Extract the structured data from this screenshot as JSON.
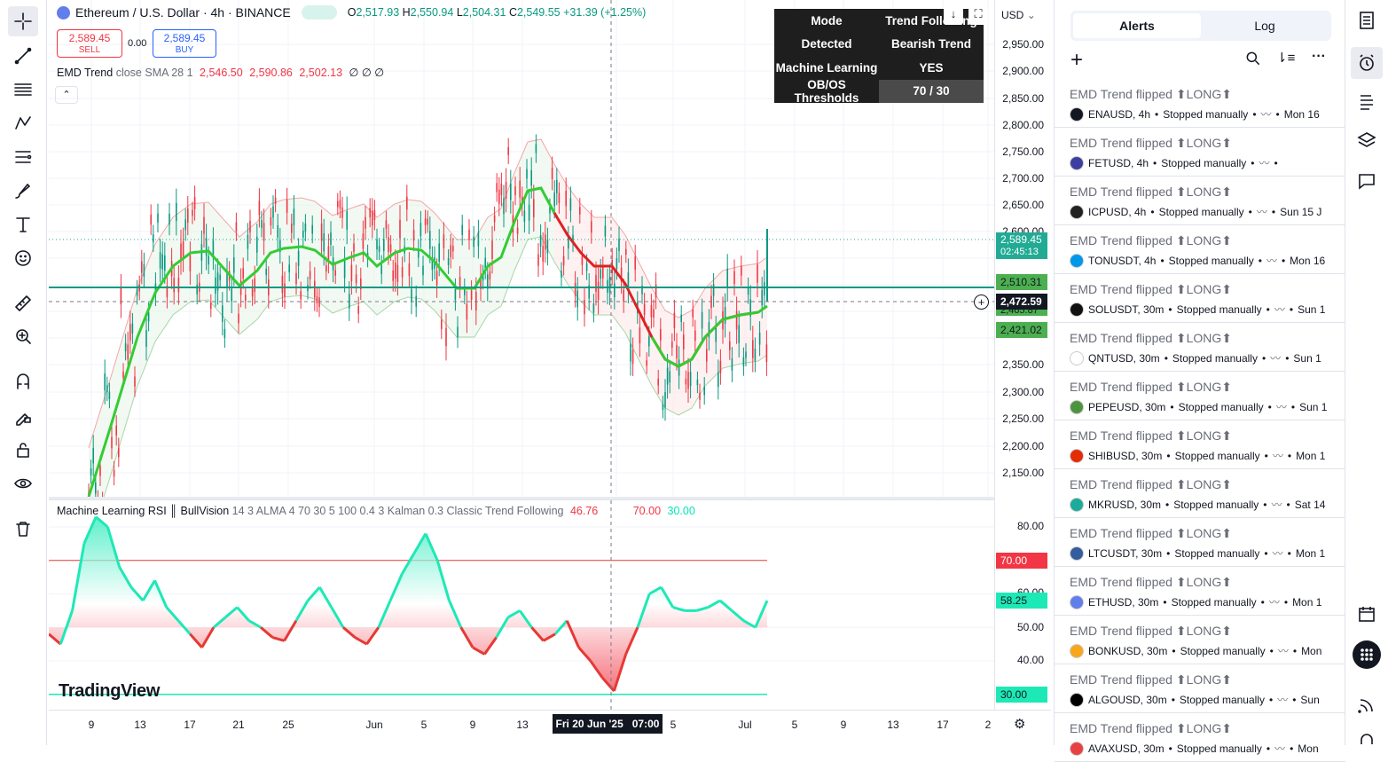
{
  "header": {
    "symbol": "Ethereum / U.S. Dollar · 4h · BINANCE",
    "o": "2,517.93",
    "h": "2,550.94",
    "l": "2,504.31",
    "c": "2,549.55",
    "change": "+31.39 (+1.25%)",
    "sell_price": "2,589.45",
    "sell_label": "SELL",
    "spread": "0.00",
    "buy_price": "2,589.45",
    "buy_label": "BUY"
  },
  "indicator": {
    "name": "EMD Trend",
    "params": "close SMA 28 1",
    "v1": "2,546.50",
    "v2": "2,590.86",
    "v3": "2,502.13",
    "tail": "∅ ∅ ∅"
  },
  "rsi_indicator": {
    "name": "Machine Learning RSI ║ BullVision",
    "params": "14 3 ALMA 4 70 30 5 100 0.4 3 Kalman 0.3 Classic Trend Following",
    "value": "46.76",
    "ob": "70.00",
    "os": "30.00"
  },
  "table": {
    "rows": [
      {
        "k": "Mode",
        "v": "Trend Following"
      },
      {
        "k": "Detected",
        "v": "Bearish Trend"
      },
      {
        "k": "Machine Learning",
        "v": "YES"
      },
      {
        "k": "OB/OS Thresholds",
        "v": "70 / 30"
      }
    ]
  },
  "price_scale": {
    "currency": "USD",
    "ticks": [
      "2,950.00",
      "2,900.00",
      "2,850.00",
      "2,800.00",
      "2,750.00",
      "2,700.00",
      "2,650.00",
      "2,600.00",
      "2,350.00",
      "2,300.00",
      "2,250.00",
      "2,200.00",
      "2,150.00"
    ],
    "last_price": "2,589.45",
    "countdown": "02:45:13",
    "level_upper": "2,510.31",
    "crosshair": "2,472.59",
    "hidden_label": "2,465.87",
    "level_lower": "2,421.02"
  },
  "rsi_scale": {
    "ticks": [
      "80.00",
      "60.00",
      "50.00",
      "40.00"
    ],
    "ob_label": "70.00",
    "current": "58.25",
    "os_label": "30.00"
  },
  "time_axis": {
    "labels": [
      "9",
      "13",
      "17",
      "21",
      "25",
      "Jun",
      "5",
      "9",
      "13",
      "5",
      "Jul",
      "5",
      "9",
      "13",
      "17",
      "2"
    ],
    "crosshair": "Fri 20 Jun '25   07:00"
  },
  "branding": "TradingView",
  "alerts_panel": {
    "tabs": [
      "Alerts",
      "Log"
    ],
    "items": [
      {
        "title": "EMD Trend flipped ⬆LONG⬆",
        "symbol": "ENAUSD, 4h",
        "status": "Stopped manually",
        "date": "Mon 16",
        "color": "#131722"
      },
      {
        "title": "EMD Trend flipped ⬆LONG⬆",
        "symbol": "FETUSD, 4h",
        "status": "Stopped manually",
        "date": "",
        "color": "#3c3fa0"
      },
      {
        "title": "EMD Trend flipped ⬆LONG⬆",
        "symbol": "ICPUSD, 4h",
        "status": "Stopped manually",
        "date": "Sun 15 J",
        "color": "#222"
      },
      {
        "title": "EMD Trend flipped ⬆LONG⬆",
        "symbol": "TONUSDT, 4h",
        "status": "Stopped manually",
        "date": "Mon 16",
        "color": "#0098ea"
      },
      {
        "title": "EMD Trend flipped ⬆LONG⬆",
        "symbol": "SOLUSDT, 30m",
        "status": "Stopped manually",
        "date": "Sun 1",
        "color": "#111"
      },
      {
        "title": "EMD Trend flipped ⬆LONG⬆",
        "symbol": "QNTUSD, 30m",
        "status": "Stopped manually",
        "date": "Sun 1",
        "color": "#ffffff"
      },
      {
        "title": "EMD Trend flipped ⬆LONG⬆",
        "symbol": "PEPEUSD, 30m",
        "status": "Stopped manually",
        "date": "Sun 1",
        "color": "#4c9540"
      },
      {
        "title": "EMD Trend flipped ⬆LONG⬆",
        "symbol": "SHIBUSD, 30m",
        "status": "Stopped manually",
        "date": "Mon 1",
        "color": "#e42d04"
      },
      {
        "title": "EMD Trend flipped ⬆LONG⬆",
        "symbol": "MKRUSD, 30m",
        "status": "Stopped manually",
        "date": "Sat 14",
        "color": "#1aab9b"
      },
      {
        "title": "EMD Trend flipped ⬆LONG⬆",
        "symbol": "LTCUSDT, 30m",
        "status": "Stopped manually",
        "date": "Mon 1",
        "color": "#345d9d"
      },
      {
        "title": "EMD Trend flipped ⬆LONG⬆",
        "symbol": "ETHUSD, 30m",
        "status": "Stopped manually",
        "date": "Mon 1",
        "color": "#627eea"
      },
      {
        "title": "EMD Trend flipped ⬆LONG⬆",
        "symbol": "BONKUSD, 30m",
        "status": "Stopped manually",
        "date": "Mon",
        "color": "#f8a61c"
      },
      {
        "title": "EMD Trend flipped ⬆LONG⬆",
        "symbol": "ALGOUSD, 30m",
        "status": "Stopped manually",
        "date": "Sun",
        "color": "#000"
      },
      {
        "title": "EMD Trend flipped ⬆LONG⬆",
        "symbol": "AVAXUSD, 30m",
        "status": "Stopped manually",
        "date": "Mon",
        "color": "#e84142"
      }
    ]
  }
}
